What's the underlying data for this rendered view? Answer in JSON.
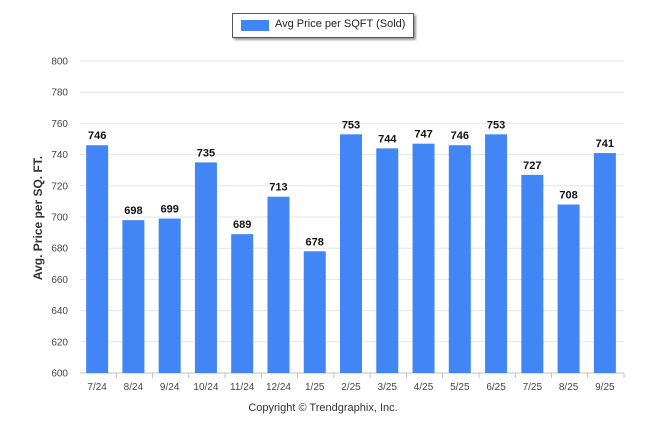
{
  "chart_data": {
    "type": "bar",
    "title": "",
    "xlabel": "",
    "ylabel": "Avg. Price per SQ. FT.",
    "ylim": [
      600,
      800
    ],
    "yticks": [
      "600",
      "620",
      "640",
      "660",
      "680",
      "700",
      "720",
      "740",
      "760",
      "780",
      "800"
    ],
    "categories": [
      "7/24",
      "8/24",
      "9/24",
      "10/24",
      "11/24",
      "12/24",
      "1/25",
      "2/25",
      "3/25",
      "4/25",
      "5/25",
      "6/25",
      "7/25",
      "8/25",
      "9/25"
    ],
    "series": [
      {
        "name": "Avg Price per SQFT (Sold)",
        "color": "#4285f4",
        "values": [
          746,
          698,
          699,
          735,
          689,
          713,
          678,
          753,
          744,
          747,
          746,
          753,
          727,
          708,
          741
        ]
      }
    ],
    "legend_position": "top-center",
    "grid": true
  },
  "footer": {
    "copyright": "Copyright © Trendgraphix, Inc."
  }
}
